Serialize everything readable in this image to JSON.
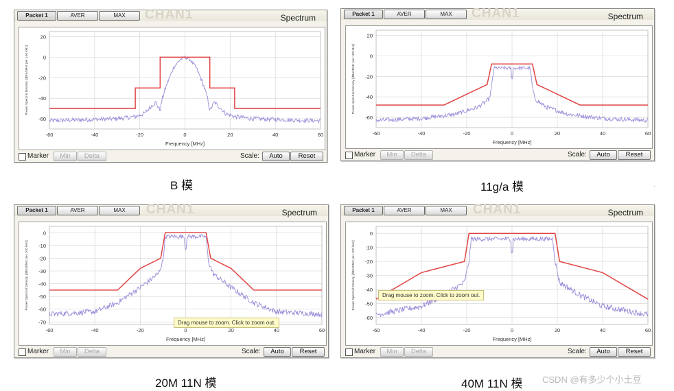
{
  "colors": {
    "mask": "#e04545",
    "trace": "#9a8ad8",
    "grid": "#d0d0d0"
  },
  "panel_ui": {
    "tabs": [
      "Packet 1",
      "AVER",
      "MAX"
    ],
    "watermark": "CHAN1",
    "spectrum_label": "Spectrum",
    "marker_label": "Marker",
    "min_label": "Min",
    "delta_label": "Delta",
    "scale_label": "Scale:",
    "auto_label": "Auto",
    "reset_label": "Reset"
  },
  "tooltip_text": "Drag mouse to zoom. Click to zoom out.",
  "credit": "CSDN @有多少个小土豆",
  "corner_mark": "·",
  "chart_data": [
    {
      "type": "line",
      "caption": "B 模",
      "title": "Spectrum",
      "xlabel": "Frequency [MHz]",
      "ylabel": "Power Spectral Density [dBm/MHz per 100 kHz]",
      "xlim": [
        -60,
        60
      ],
      "ylim": [
        -70,
        25
      ],
      "xticks": [
        -60,
        -40,
        -20,
        0,
        20,
        40,
        60
      ],
      "yticks": [
        20,
        0,
        -20,
        -40,
        -60
      ],
      "series": [
        {
          "name": "spectral mask",
          "x": [
            -60,
            -22,
            -22,
            -11,
            -11,
            11,
            11,
            22,
            22,
            60
          ],
          "y": [
            -50,
            -50,
            -30,
            -30,
            0,
            0,
            -30,
            -30,
            -50,
            -50
          ]
        },
        {
          "name": "measured spectrum",
          "shape": "dsss",
          "x": [
            -60,
            -30,
            -22,
            -18,
            -15,
            -13,
            -11,
            -10,
            -8,
            -5,
            -2,
            0,
            2,
            5,
            8,
            10,
            11,
            13,
            15,
            18,
            22,
            30,
            60
          ],
          "y": [
            -62,
            -60,
            -58,
            -55,
            -48,
            -44,
            -52,
            -40,
            -26,
            -10,
            -2,
            0,
            -2,
            -10,
            -26,
            -40,
            -52,
            -44,
            -48,
            -55,
            -58,
            -60,
            -62
          ]
        }
      ]
    },
    {
      "type": "line",
      "caption": "11g/a 模",
      "title": "Spectrum",
      "xlabel": "Frequency [MHz]",
      "ylabel": "Power Spectral Density [dBm/MHz per 100 kHz]",
      "xlim": [
        -60,
        60
      ],
      "ylim": [
        -70,
        25
      ],
      "xticks": [
        -60,
        -40,
        -20,
        0,
        20,
        40,
        60
      ],
      "yticks": [
        20,
        0,
        -20,
        -40,
        -60
      ],
      "series": [
        {
          "name": "spectral mask",
          "x": [
            -60,
            -30,
            -11,
            -9,
            9,
            11,
            30,
            60
          ],
          "y": [
            -48,
            -48,
            -28,
            -8,
            -8,
            -28,
            -48,
            -48
          ]
        },
        {
          "name": "measured spectrum",
          "shape": "ofdm",
          "x": [
            -60,
            -40,
            -25,
            -15,
            -10,
            -9,
            -8,
            8,
            9,
            10,
            15,
            25,
            40,
            60
          ],
          "y": [
            -63,
            -61,
            -57,
            -50,
            -42,
            -30,
            -12,
            -12,
            -30,
            -42,
            -50,
            -57,
            -61,
            -63
          ]
        }
      ]
    },
    {
      "type": "line",
      "caption": "20M 11N 模",
      "title": "Spectrum",
      "xlabel": "Frequency [MHz]",
      "ylabel": "Power Spectral Density [dBm/MHz per 100 kHz]",
      "xlim": [
        -60,
        60
      ],
      "ylim": [
        -72,
        5
      ],
      "xticks": [
        -60,
        -40,
        -20,
        0,
        20,
        40,
        60
      ],
      "yticks": [
        0,
        -10,
        -20,
        -30,
        -40,
        -50,
        -60,
        -70
      ],
      "series": [
        {
          "name": "spectral mask",
          "x": [
            -60,
            -30,
            -20,
            -11,
            -9,
            9,
            11,
            20,
            30,
            60
          ],
          "y": [
            -45,
            -45,
            -28,
            -20,
            0,
            0,
            -20,
            -28,
            -45,
            -45
          ]
        },
        {
          "name": "measured spectrum",
          "shape": "ofdm",
          "x": [
            -60,
            -40,
            -30,
            -20,
            -12,
            -10,
            -9,
            9,
            10,
            12,
            20,
            30,
            40,
            60
          ],
          "y": [
            -64,
            -62,
            -55,
            -43,
            -32,
            -22,
            -3,
            -3,
            -22,
            -32,
            -43,
            -55,
            -62,
            -64
          ]
        }
      ]
    },
    {
      "type": "line",
      "caption": "40M 11N 模",
      "title": "Spectrum",
      "xlabel": "Frequency [MHz]",
      "ylabel": "Power Spectral Density [dBm/MHz per 100 kHz]",
      "xlim": [
        -60,
        60
      ],
      "ylim": [
        -65,
        5
      ],
      "xticks": [
        -60,
        -40,
        -20,
        0,
        20,
        40,
        60
      ],
      "yticks": [
        0,
        -10,
        -20,
        -30,
        -40,
        -50,
        -60
      ],
      "series": [
        {
          "name": "spectral mask",
          "x": [
            -60,
            -40,
            -21,
            -19,
            19,
            21,
            40,
            60
          ],
          "y": [
            -47,
            -28,
            -20,
            0,
            0,
            -20,
            -28,
            -47
          ]
        },
        {
          "name": "measured spectrum",
          "shape": "ofdm",
          "x": [
            -60,
            -40,
            -30,
            -21,
            -19,
            -18,
            18,
            19,
            21,
            30,
            40,
            60
          ],
          "y": [
            -58,
            -52,
            -44,
            -35,
            -20,
            -4,
            -4,
            -20,
            -35,
            -44,
            -52,
            -58
          ]
        }
      ]
    }
  ]
}
